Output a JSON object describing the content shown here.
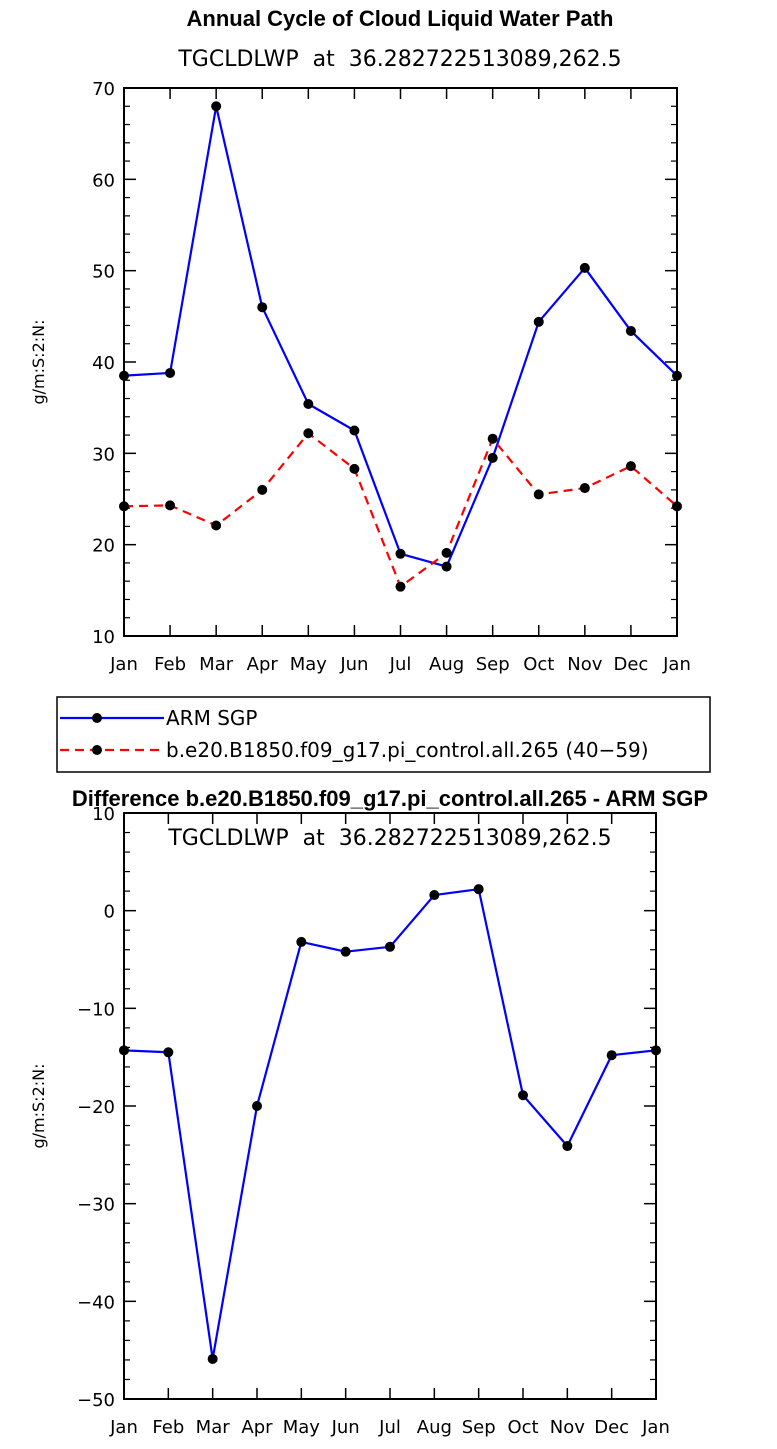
{
  "chart_data": [
    {
      "type": "line",
      "title": "Annual Cycle of Cloud Liquid Water Path",
      "subtitle": "TGCLDLWP  at  36.282722513089,262.5",
      "ylabel": "g/m:S:2:N:",
      "ylim": [
        10,
        70
      ],
      "yticks": [
        10,
        20,
        30,
        40,
        50,
        60,
        70
      ],
      "categories": [
        "Jan",
        "Feb",
        "Mar",
        "Apr",
        "May",
        "Jun",
        "Jul",
        "Aug",
        "Sep",
        "Oct",
        "Nov",
        "Dec",
        "Jan"
      ],
      "series": [
        {
          "name": "ARM SGP",
          "color": "#0000ff",
          "dash": "solid",
          "values": [
            38.5,
            38.8,
            68.0,
            46.0,
            35.4,
            32.5,
            19.0,
            17.6,
            29.5,
            44.4,
            50.3,
            43.4,
            38.5
          ]
        },
        {
          "name": "b.e20.B1850.f09_g17.pi_control.all.265 (40−59)",
          "color": "#ff0000",
          "dash": "dashed",
          "values": [
            24.2,
            24.3,
            22.1,
            26.0,
            32.2,
            28.3,
            15.4,
            19.1,
            31.6,
            25.5,
            26.2,
            28.6,
            24.2
          ]
        }
      ],
      "legend": "below"
    },
    {
      "type": "line",
      "title": "Difference b.e20.B1850.f09_g17.pi_control.all.265 - ARM SGP",
      "subtitle": "TGCLDLWP  at  36.282722513089,262.5",
      "ylabel": "g/m:S:2:N:",
      "ylim": [
        -50,
        10
      ],
      "yticks": [
        -50,
        -40,
        -30,
        -20,
        -10,
        0,
        10
      ],
      "ytick_labels": [
        "−50",
        "−40",
        "−30",
        "−20",
        "−10",
        "0",
        "10"
      ],
      "categories": [
        "Jan",
        "Feb",
        "Mar",
        "Apr",
        "May",
        "Jun",
        "Jul",
        "Aug",
        "Sep",
        "Oct",
        "Nov",
        "Dec",
        "Jan"
      ],
      "series": [
        {
          "color": "#0000ff",
          "dash": "solid",
          "values": [
            -14.3,
            -14.5,
            -45.9,
            -20.0,
            -3.2,
            -4.2,
            -3.7,
            1.6,
            2.2,
            -18.9,
            -24.1,
            -14.8,
            -14.3
          ]
        }
      ]
    }
  ]
}
